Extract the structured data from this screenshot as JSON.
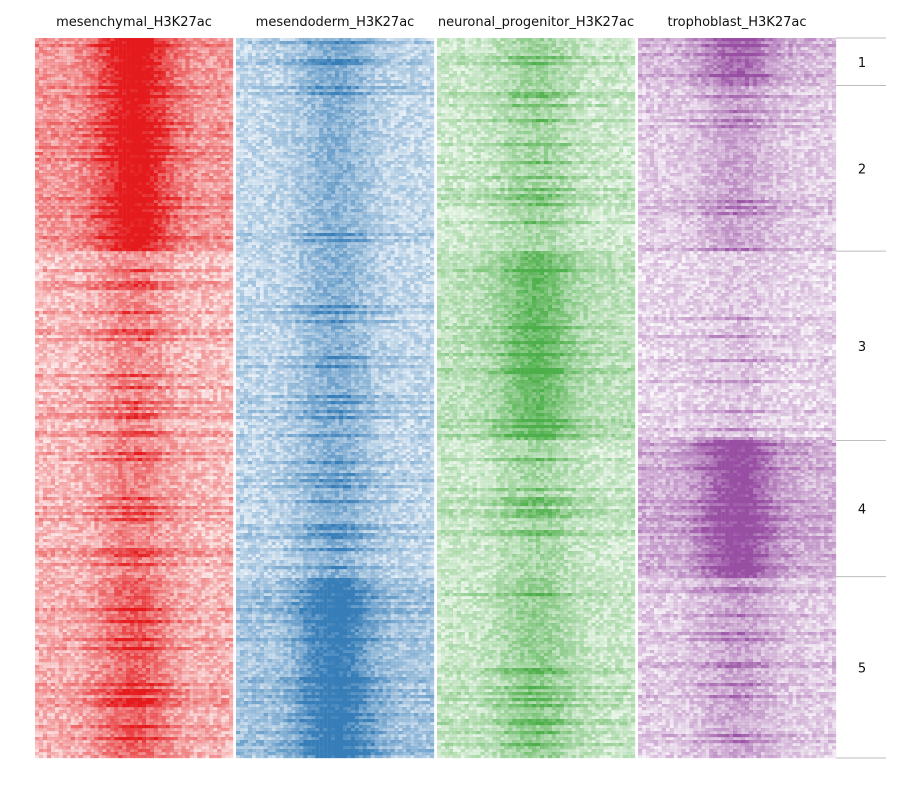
{
  "chart_data": {
    "type": "heatmap",
    "columns": [
      {
        "name": "mesenchymal_H3K27ac",
        "color": "#e41a1c"
      },
      {
        "name": "mesendoderm_H3K27ac",
        "color": "#377eb8"
      },
      {
        "name": "neuronal_progenitor_H3K27ac",
        "color": "#4daf4a"
      },
      {
        "name": "trophoblast_H3K27ac",
        "color": "#984ea3"
      }
    ],
    "clusters": [
      {
        "label": "1",
        "fraction": 0.066,
        "signal": [
          0.95,
          0.45,
          0.35,
          0.65
        ]
      },
      {
        "label": "2",
        "fraction": 0.23,
        "signal": [
          0.9,
          0.4,
          0.3,
          0.3
        ]
      },
      {
        "label": "3",
        "fraction": 0.263,
        "signal": [
          0.3,
          0.4,
          0.65,
          0.12
        ]
      },
      {
        "label": "4",
        "fraction": 0.189,
        "signal": [
          0.35,
          0.4,
          0.3,
          0.85
        ]
      },
      {
        "label": "5",
        "fraction": 0.252,
        "signal": [
          0.5,
          0.85,
          0.4,
          0.3
        ]
      }
    ],
    "legend": "none",
    "grid": false
  }
}
